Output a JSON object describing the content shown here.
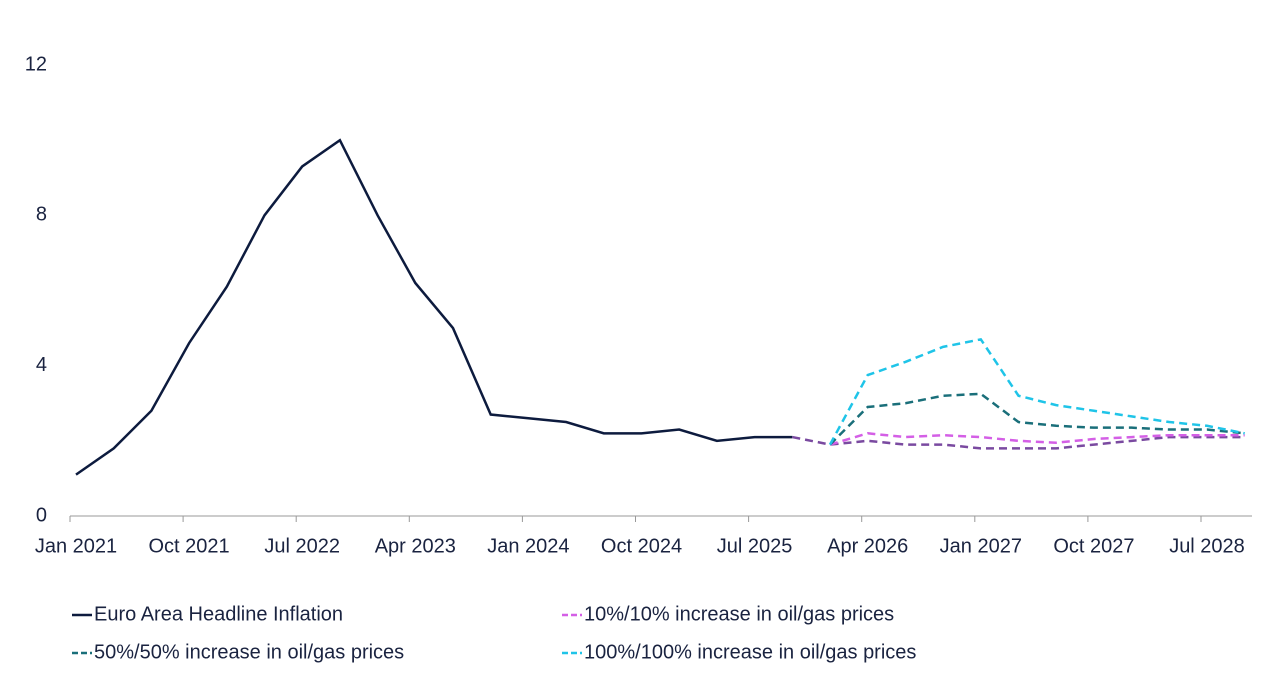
{
  "chart_data": {
    "type": "line",
    "x": [
      "Jan 2021",
      null,
      null,
      "Oct 2021",
      null,
      null,
      "Jul 2022",
      null,
      null,
      "Apr 2023",
      null,
      null,
      "Jan 2024",
      null,
      null,
      "Oct 2024",
      null,
      null,
      "Jul 2025",
      null,
      null,
      "Apr 2026",
      null,
      null,
      "Jan 2027",
      null,
      null,
      "Oct 2027",
      null,
      null,
      "Jul 2028",
      null
    ],
    "ylim": [
      0,
      12
    ],
    "yticks": [
      0,
      4,
      8,
      12
    ],
    "grid": false,
    "series": [
      {
        "name": "Euro Area Headline Inflation",
        "color": "#0d1b3e",
        "dash": false,
        "values": [
          1.1,
          1.8,
          2.8,
          4.6,
          6.1,
          8.0,
          9.3,
          10.0,
          8.0,
          6.2,
          5.0,
          2.7,
          2.6,
          2.5,
          2.2,
          2.2,
          2.3,
          2.0,
          2.1,
          2.1,
          null,
          null,
          null,
          null,
          null,
          null,
          null,
          null,
          null,
          null,
          null,
          null
        ]
      },
      {
        "color": "#7a4aa0",
        "dash": true,
        "values": [
          null,
          null,
          null,
          null,
          null,
          null,
          null,
          null,
          null,
          null,
          null,
          null,
          null,
          null,
          null,
          null,
          null,
          null,
          null,
          2.1,
          1.9,
          2.0,
          1.9,
          1.9,
          1.8,
          1.8,
          1.8,
          1.9,
          2.0,
          2.1,
          2.1,
          2.1
        ]
      },
      {
        "name": "10%/10% increase in oil/gas prices",
        "color": "#d45fe6",
        "dash": true,
        "values": [
          null,
          null,
          null,
          null,
          null,
          null,
          null,
          null,
          null,
          null,
          null,
          null,
          null,
          null,
          null,
          null,
          null,
          null,
          null,
          null,
          1.9,
          2.2,
          2.1,
          2.15,
          2.1,
          2.0,
          1.95,
          2.05,
          2.1,
          2.15,
          2.15,
          2.15
        ]
      },
      {
        "name": "50%/50% increase in oil/gas prices",
        "color": "#1a6f7a",
        "dash": true,
        "values": [
          null,
          null,
          null,
          null,
          null,
          null,
          null,
          null,
          null,
          null,
          null,
          null,
          null,
          null,
          null,
          null,
          null,
          null,
          null,
          null,
          1.9,
          2.9,
          3.0,
          3.2,
          3.25,
          2.5,
          2.4,
          2.35,
          2.35,
          2.3,
          2.3,
          2.2
        ]
      },
      {
        "name": "100%/100% increase in oil/gas prices",
        "color": "#1fc4e8",
        "dash": true,
        "values": [
          null,
          null,
          null,
          null,
          null,
          null,
          null,
          null,
          null,
          null,
          null,
          null,
          null,
          null,
          null,
          null,
          null,
          null,
          null,
          null,
          1.9,
          3.75,
          4.1,
          4.5,
          4.7,
          3.2,
          2.95,
          2.8,
          2.65,
          2.5,
          2.4,
          2.2
        ]
      }
    ]
  }
}
